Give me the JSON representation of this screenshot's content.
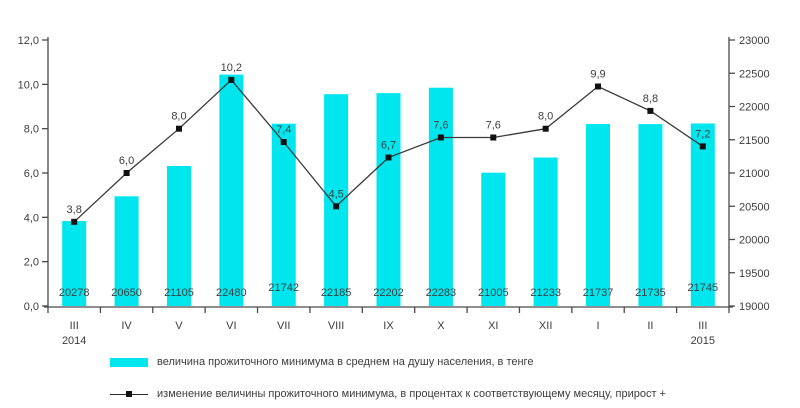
{
  "legend": {
    "bar_label": "величина прожиточного минимума в среднем на душу населения, в тенге",
    "line_label": "изменение величины прожиточного минимума, в процентах к соответствующему месяцу, прирост +"
  },
  "colors": {
    "bar": "#00e6ee",
    "line": "#3a3a3a",
    "marker": "#111111",
    "axis": "#4a4a4a",
    "text": "#3d3d3d"
  },
  "chart_data": {
    "type": "bar+line combo",
    "title": "",
    "grid": false,
    "legend_position": "bottom-left",
    "categories": [
      "III",
      "IV",
      "V",
      "VI",
      "VII",
      "VIII",
      "IX",
      "X",
      "XI",
      "XII",
      "I",
      "II",
      "III"
    ],
    "x_year_start": "2014",
    "x_year_end": "2015",
    "left_axis": {
      "min": 0,
      "max": 12,
      "step": 2,
      "tick_labels": [
        "0,0",
        "2,0",
        "4,0",
        "6,0",
        "8,0",
        "10,0",
        "12,0"
      ]
    },
    "right_axis": {
      "min": 19000,
      "max": 23000,
      "step": 500,
      "tick_labels": [
        "19000",
        "19500",
        "20000",
        "20500",
        "21000",
        "21500",
        "22000",
        "22500",
        "23000"
      ]
    },
    "series": [
      {
        "name": "величина прожиточного минимума в среднем на душу населения, в тенге",
        "type": "bar",
        "axis": "right",
        "values": [
          20278,
          20650,
          21105,
          22480,
          21742,
          22185,
          22202,
          22283,
          21005,
          21233,
          21737,
          21735,
          21745
        ],
        "labels": [
          "20278",
          "20650",
          "21105",
          "22480",
          "21742",
          "22185",
          "22202",
          "22283",
          "21005",
          "21233",
          "21737",
          "21735",
          "21745"
        ]
      },
      {
        "name": "изменение величины прожиточного минимума, в процентах к соответствующему месяцу, прирост +",
        "type": "line",
        "axis": "left",
        "values": [
          3.8,
          6.0,
          8.0,
          10.2,
          7.4,
          4.5,
          6.7,
          7.6,
          7.6,
          8.0,
          9.9,
          8.8,
          7.2
        ],
        "labels": [
          "3,8",
          "6,0",
          "8,0",
          "10,2",
          "7,4",
          "4,5",
          "6,7",
          "7,6",
          "7,6",
          "8,0",
          "9,9",
          "8,8",
          "7,2"
        ]
      }
    ]
  }
}
